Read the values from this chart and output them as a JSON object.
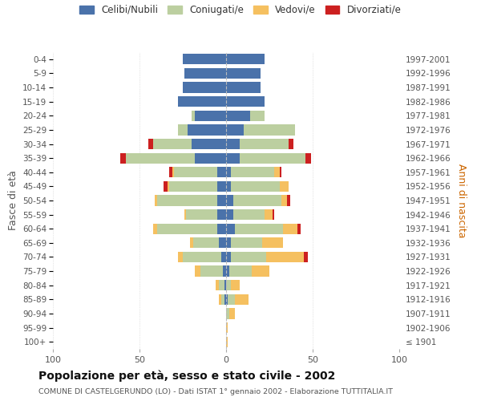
{
  "age_groups": [
    "100+",
    "95-99",
    "90-94",
    "85-89",
    "80-84",
    "75-79",
    "70-74",
    "65-69",
    "60-64",
    "55-59",
    "50-54",
    "45-49",
    "40-44",
    "35-39",
    "30-34",
    "25-29",
    "20-24",
    "15-19",
    "10-14",
    "5-9",
    "0-4"
  ],
  "birth_years": [
    "≤ 1901",
    "1902-1906",
    "1907-1911",
    "1912-1916",
    "1917-1921",
    "1922-1926",
    "1927-1931",
    "1932-1936",
    "1937-1941",
    "1942-1946",
    "1947-1951",
    "1952-1956",
    "1957-1961",
    "1962-1966",
    "1967-1971",
    "1972-1976",
    "1977-1981",
    "1982-1986",
    "1987-1991",
    "1992-1996",
    "1997-2001"
  ],
  "colors": {
    "celibi": "#4a72aa",
    "coniugati": "#bccfa0",
    "vedovi": "#f5c060",
    "divorziati": "#cc2020"
  },
  "males_celibi": [
    0,
    0,
    0,
    1,
    1,
    2,
    3,
    4,
    5,
    5,
    5,
    5,
    5,
    18,
    20,
    22,
    18,
    28,
    25,
    24,
    25
  ],
  "males_coniugati": [
    0,
    0,
    0,
    2,
    3,
    13,
    22,
    15,
    35,
    18,
    35,
    28,
    25,
    40,
    22,
    6,
    2,
    0,
    0,
    0,
    0
  ],
  "males_vedovi": [
    0,
    0,
    0,
    1,
    2,
    3,
    3,
    2,
    2,
    1,
    1,
    1,
    1,
    0,
    0,
    0,
    0,
    0,
    0,
    0,
    0
  ],
  "males_divorziati": [
    0,
    0,
    0,
    0,
    0,
    0,
    0,
    0,
    0,
    0,
    0,
    2,
    2,
    3,
    3,
    0,
    0,
    0,
    0,
    0,
    0
  ],
  "females_celibi": [
    0,
    0,
    0,
    1,
    0,
    2,
    3,
    3,
    5,
    4,
    4,
    3,
    3,
    8,
    8,
    10,
    14,
    22,
    20,
    20,
    22
  ],
  "females_coniugati": [
    0,
    0,
    2,
    4,
    3,
    13,
    20,
    18,
    28,
    18,
    28,
    28,
    25,
    38,
    28,
    30,
    8,
    0,
    0,
    0,
    0
  ],
  "females_vedovi": [
    1,
    1,
    3,
    8,
    5,
    10,
    22,
    12,
    8,
    5,
    3,
    5,
    3,
    0,
    0,
    0,
    0,
    0,
    0,
    0,
    0
  ],
  "females_divorziati": [
    0,
    0,
    0,
    0,
    0,
    0,
    2,
    0,
    2,
    1,
    2,
    0,
    1,
    3,
    3,
    0,
    0,
    0,
    0,
    0,
    0
  ],
  "xlim": 100,
  "title": "Popolazione per età, sesso e stato civile - 2002",
  "subtitle": "COMUNE DI CASTELGERUNDO (LO) - Dati ISTAT 1° gennaio 2002 - Elaborazione TUTTITALIA.IT",
  "ylabel_left": "Fasce di età",
  "ylabel_right": "Anni di nascita",
  "legend_labels": [
    "Celibi/Nubili",
    "Coniugati/e",
    "Vedovi/e",
    "Divorziati/e"
  ],
  "bg_color": "#ffffff",
  "bar_height": 0.75
}
